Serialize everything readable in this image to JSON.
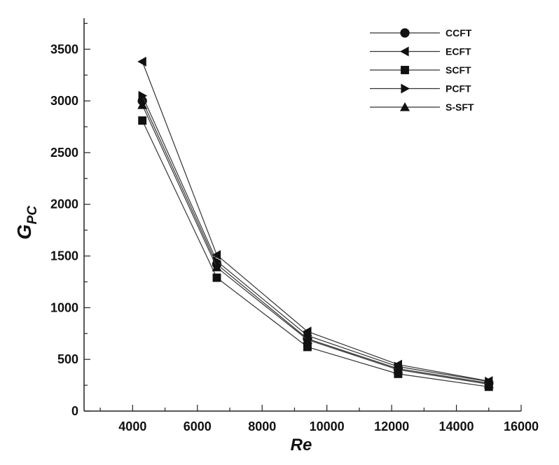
{
  "chart_data": {
    "type": "line",
    "xlabel": "Re",
    "ylabel_main": "G",
    "ylabel_sub": "PC",
    "xlim": [
      2500,
      16000
    ],
    "ylim": [
      0,
      3800
    ],
    "xticks": [
      4000,
      6000,
      8000,
      10000,
      12000,
      14000,
      16000
    ],
    "yticks": [
      0,
      500,
      1000,
      1500,
      2000,
      2500,
      3000,
      3500
    ],
    "grid": false,
    "legend_position": "top-right",
    "x": [
      4300,
      6600,
      9400,
      12200,
      15000
    ],
    "series": [
      {
        "name": "CCFT",
        "marker": "circle",
        "values": [
          3000,
          1420,
          700,
          410,
          270
        ]
      },
      {
        "name": "ECFT",
        "marker": "triangle-left",
        "values": [
          3380,
          1510,
          770,
          450,
          290
        ]
      },
      {
        "name": "SCFT",
        "marker": "square",
        "values": [
          2810,
          1290,
          620,
          360,
          235
        ]
      },
      {
        "name": "PCFT",
        "marker": "triangle-right",
        "values": [
          3050,
          1450,
          730,
          430,
          285
        ]
      },
      {
        "name": "S-SFT",
        "marker": "triangle-up",
        "values": [
          2960,
          1390,
          690,
          400,
          260
        ]
      }
    ]
  }
}
